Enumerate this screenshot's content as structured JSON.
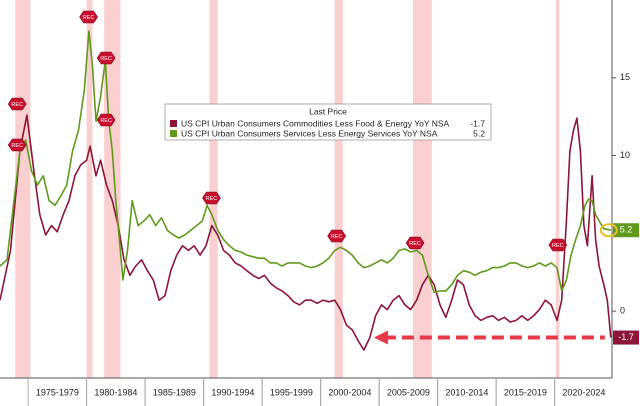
{
  "chart_data": {
    "type": "line",
    "legend_title": "Last Price",
    "recession_label": "REC",
    "xlim": [
      1972.6,
      2024.9
    ],
    "ylim": [
      -4.3,
      20
    ],
    "yticks": [
      0,
      5,
      10,
      15
    ],
    "xticks": [
      {
        "value": 1977.5,
        "label": "1975-1979"
      },
      {
        "value": 1982.5,
        "label": "1980-1984"
      },
      {
        "value": 1987.5,
        "label": "1985-1989"
      },
      {
        "value": 1992.5,
        "label": "1990-1994"
      },
      {
        "value": 1997.5,
        "label": "1995-1999"
      },
      {
        "value": 2002.5,
        "label": "2000-2004"
      },
      {
        "value": 2007.5,
        "label": "2005-2009"
      },
      {
        "value": 2012.5,
        "label": "2010-2014"
      },
      {
        "value": 2017.5,
        "label": "2015-2019"
      },
      {
        "value": 2022.5,
        "label": "2020-2024"
      }
    ],
    "recessions": [
      [
        1973.9,
        1975.2
      ],
      [
        1980.0,
        1980.5
      ],
      [
        1981.5,
        1982.9
      ],
      [
        1990.5,
        1991.2
      ],
      [
        2001.2,
        2001.9
      ],
      [
        2007.9,
        2009.5
      ],
      [
        2020.1,
        2020.4
      ]
    ],
    "series": [
      {
        "name": "US CPI Urban Consumers Commodities Less Food & Energy YoY NSA",
        "color": "#8c1538",
        "x": [
          1972.6,
          1973.5,
          1974.3,
          1974.9,
          1975.5,
          1976,
          1976.5,
          1977,
          1977.5,
          1978,
          1978.5,
          1979,
          1979.5,
          1980,
          1980.3,
          1980.8,
          1981.2,
          1981.7,
          1982.2,
          1982.7,
          1983.2,
          1983.7,
          1984.2,
          1984.7,
          1985.2,
          1985.7,
          1986.2,
          1986.7,
          1987.2,
          1987.7,
          1988.2,
          1988.7,
          1989.2,
          1989.7,
          1990.2,
          1990.7,
          1991.2,
          1991.7,
          1992.2,
          1992.7,
          1993.2,
          1993.7,
          1994.2,
          1994.7,
          1995.2,
          1995.7,
          1996.2,
          1996.7,
          1997.2,
          1997.7,
          1998.2,
          1998.7,
          1999.2,
          1999.7,
          2000.2,
          2000.7,
          2001.2,
          2001.7,
          2002.2,
          2002.7,
          2003.2,
          2003.7,
          2004.2,
          2004.7,
          2005.2,
          2005.7,
          2006.2,
          2006.7,
          2007.2,
          2007.7,
          2008.2,
          2008.7,
          2009.2,
          2009.7,
          2010.2,
          2010.7,
          2011.2,
          2011.7,
          2012.2,
          2012.7,
          2013.2,
          2013.7,
          2014.2,
          2014.7,
          2015.2,
          2015.7,
          2016.2,
          2016.7,
          2017.2,
          2017.7,
          2018.2,
          2018.7,
          2019.2,
          2019.7,
          2020.2,
          2020.6,
          2021.0,
          2021.3,
          2021.6,
          2021.9,
          2022.2,
          2022.5,
          2022.8,
          2023.2,
          2023.5,
          2023.8,
          2024.2,
          2024.5,
          2024.8
        ],
        "values": [
          0.7,
          3.9,
          10.3,
          12.6,
          9,
          6.2,
          4.9,
          5.5,
          5.1,
          6.2,
          7.1,
          8.7,
          9.4,
          9.7,
          10.6,
          8.7,
          9.7,
          8.1,
          7.1,
          5.5,
          3.3,
          2.3,
          2.9,
          3.3,
          2.6,
          2.0,
          0.7,
          1.0,
          2.6,
          3.6,
          4.2,
          3.9,
          4.2,
          3.6,
          4.2,
          5.5,
          4.9,
          3.9,
          3.6,
          3.1,
          2.9,
          2.6,
          2.3,
          2.1,
          2.3,
          1.8,
          1.5,
          1.3,
          1.0,
          0.6,
          0.4,
          0.7,
          0.7,
          0.5,
          0.7,
          0.6,
          0.7,
          0.1,
          -0.9,
          -1.2,
          -1.9,
          -2.5,
          -1.7,
          -0.3,
          0.4,
          0.1,
          0.7,
          1.0,
          0.4,
          0.1,
          0.7,
          1.7,
          2.3,
          1.7,
          0.4,
          -0.4,
          0.7,
          2.0,
          1.7,
          0.4,
          -0.3,
          -0.6,
          -0.4,
          -0.3,
          -0.6,
          -0.4,
          -0.7,
          -0.6,
          -0.3,
          -0.6,
          -0.3,
          0.1,
          0.7,
          0.4,
          -0.6,
          0.7,
          5.8,
          10.3,
          11.6,
          12.4,
          10.3,
          5.5,
          4.2,
          8.7,
          4.6,
          2.9,
          1.7,
          0.7,
          -1.7
        ]
      },
      {
        "name": "US CPI Urban Consumers Services Less Energy Services YoY NSA",
        "color": "#5f9a1c",
        "x": [
          1972.6,
          1973.2,
          1973.8,
          1974.3,
          1974.8,
          1975.3,
          1975.8,
          1976.3,
          1976.8,
          1977.3,
          1977.8,
          1978.3,
          1978.8,
          1979.3,
          1979.8,
          1980.2,
          1980.5,
          1980.8,
          1981.2,
          1981.6,
          1981.9,
          1982.2,
          1982.5,
          1982.8,
          1983.1,
          1983.5,
          1983.9,
          1984.4,
          1984.9,
          1985.4,
          1985.9,
          1986.4,
          1986.9,
          1987.4,
          1987.9,
          1988.4,
          1988.9,
          1989.4,
          1989.9,
          1990.3,
          1990.7,
          1991.2,
          1991.7,
          1992.2,
          1992.7,
          1993.2,
          1993.7,
          1994.2,
          1994.7,
          1995.2,
          1995.7,
          1996.2,
          1996.7,
          1997.2,
          1997.7,
          1998.2,
          1998.7,
          1999.2,
          1999.7,
          2000.2,
          2000.7,
          2001.2,
          2001.7,
          2002.2,
          2002.7,
          2003.2,
          2003.7,
          2004.2,
          2004.7,
          2005.2,
          2005.7,
          2006.2,
          2006.7,
          2007.2,
          2007.7,
          2008.2,
          2008.7,
          2009.2,
          2009.7,
          2010.2,
          2010.7,
          2011.2,
          2011.7,
          2012.2,
          2012.7,
          2013.2,
          2013.7,
          2014.2,
          2014.7,
          2015.2,
          2015.7,
          2016.2,
          2016.7,
          2017.2,
          2017.7,
          2018.2,
          2018.7,
          2019.2,
          2019.7,
          2020.2,
          2020.6,
          2021.0,
          2021.4,
          2021.8,
          2022.2,
          2022.6,
          2022.9,
          2023.2,
          2023.5,
          2023.8,
          2024.2,
          2024.8
        ],
        "values": [
          2.9,
          3.3,
          7.1,
          10.3,
          11.0,
          9.0,
          8.1,
          8.7,
          7.1,
          6.8,
          7.4,
          8.1,
          10.3,
          11.6,
          14.2,
          18.0,
          15.8,
          12.2,
          13.8,
          16.1,
          12.2,
          10.3,
          7.1,
          4.6,
          2.0,
          3.9,
          7.1,
          5.5,
          5.8,
          6.2,
          5.5,
          6.0,
          5.2,
          4.9,
          4.7,
          4.9,
          5.2,
          5.5,
          5.8,
          6.8,
          6.2,
          5.2,
          4.6,
          4.2,
          3.9,
          3.8,
          3.6,
          3.5,
          3.4,
          3.4,
          3.1,
          3.1,
          2.9,
          3.1,
          3.1,
          3.1,
          2.9,
          2.8,
          2.9,
          3.1,
          3.4,
          3.9,
          4.1,
          3.9,
          3.6,
          3.1,
          2.8,
          2.9,
          3.1,
          3.3,
          3.1,
          3.4,
          3.9,
          4.0,
          3.8,
          3.9,
          3.6,
          2.3,
          1.2,
          1.3,
          1.3,
          1.7,
          2.3,
          2.6,
          2.5,
          2.3,
          2.5,
          2.6,
          2.8,
          2.8,
          2.9,
          3.1,
          3.1,
          2.9,
          2.8,
          2.9,
          3.1,
          2.9,
          3.1,
          2.8,
          1.3,
          2.0,
          3.6,
          4.6,
          5.5,
          6.8,
          7.2,
          7.1,
          6.2,
          5.8,
          5.3,
          5.2
        ]
      }
    ]
  }
}
